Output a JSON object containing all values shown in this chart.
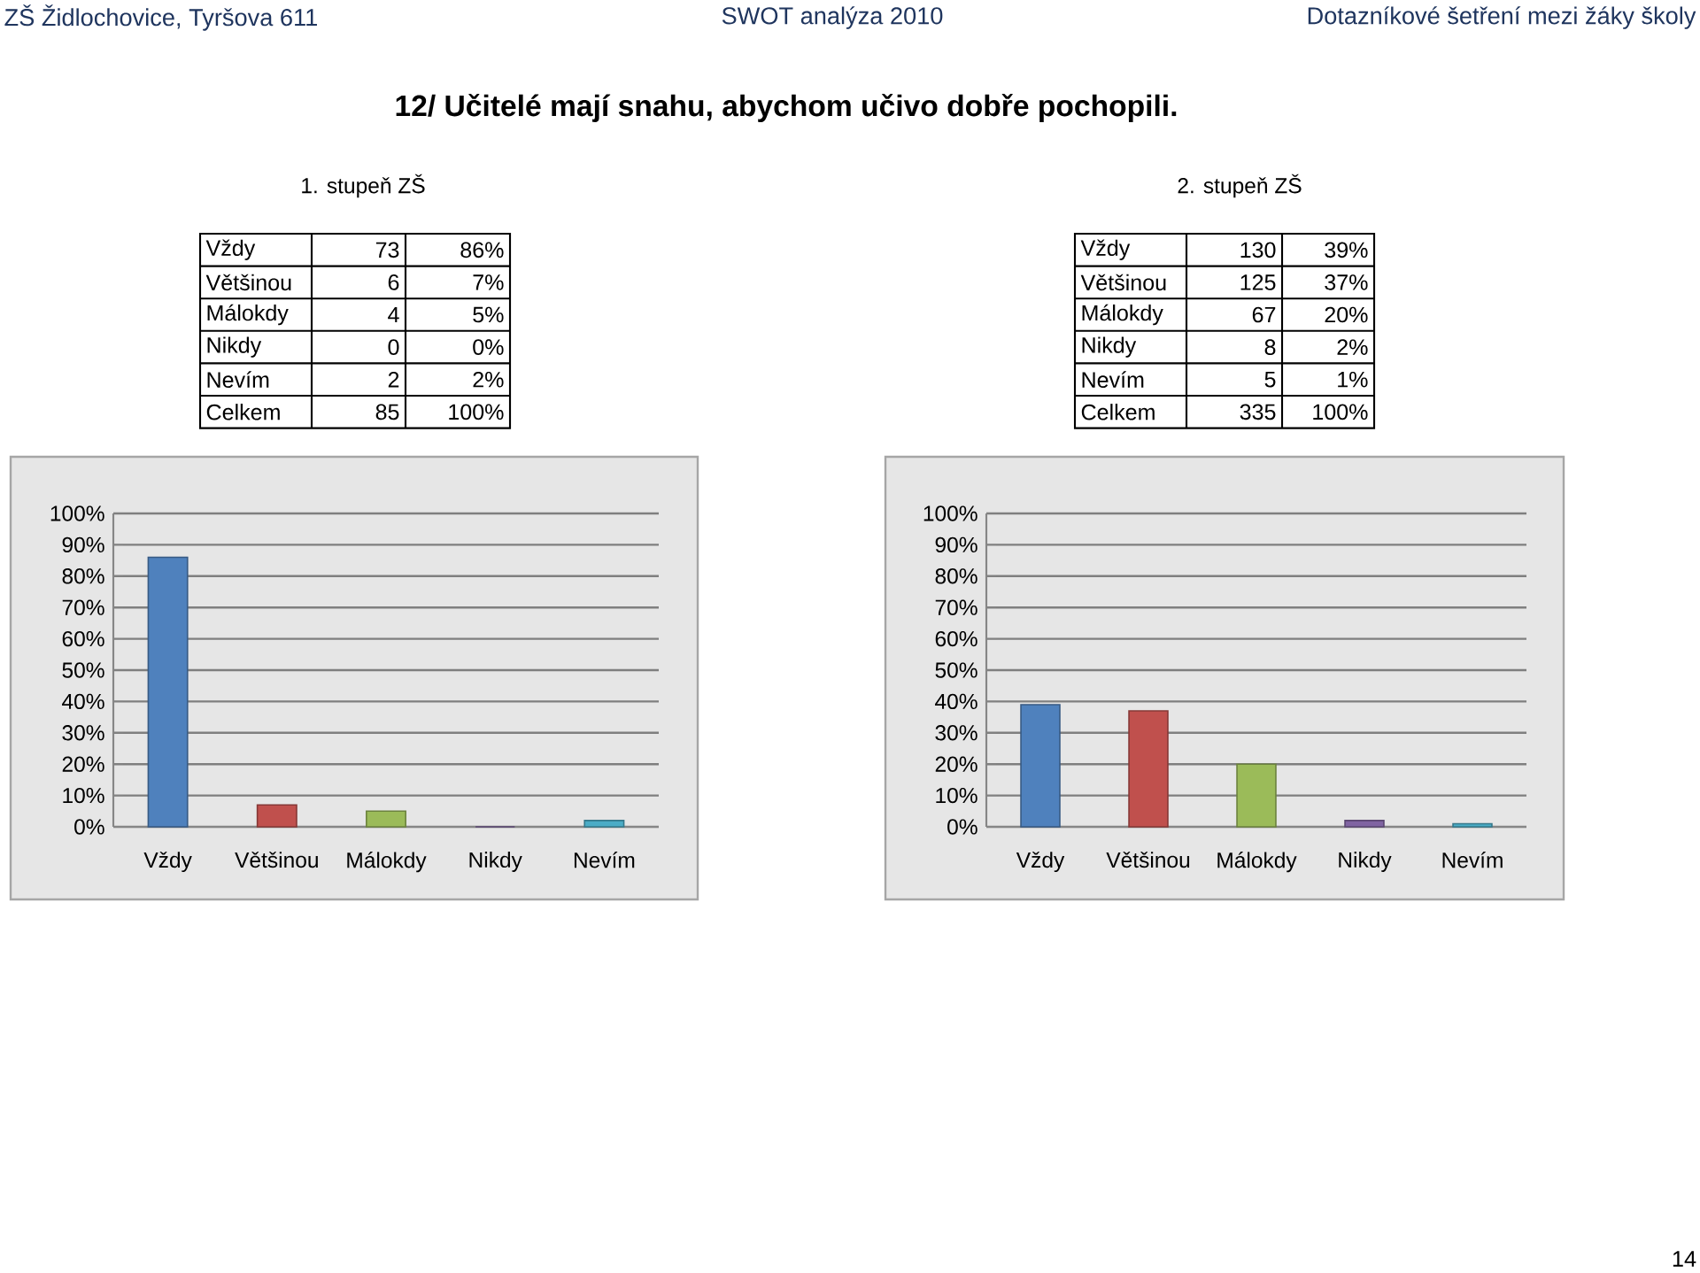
{
  "chart_data": [
    {
      "type": "other",
      "title": "1. stupeň ZŠ",
      "categories": [
        "Vždy",
        "Většinou",
        "Málokdy",
        "Nikdy",
        "Nevím",
        "Celkem"
      ],
      "data_labels": true,
      "series": [
        {
          "values": [
            73,
            6,
            4,
            0,
            2,
            85
          ]
        },
        {
          "values": [
            86,
            7,
            5,
            0,
            2,
            100
          ],
          "value_labels": [
            "86%",
            "7%",
            "5%",
            "0%",
            "2%",
            "100%"
          ]
        }
      ],
      "annotations": [
        "ZŠ Židlochovice, Tyršova 611",
        "SWOT analýza 2010",
        "Dotazníkové šetření mezi žáky školy",
        "12/ Učitelé mají snahu, abychom učivo dobře pochopili.",
        "14"
      ]
    },
    {
      "type": "other",
      "title": "2. stupeň ZŠ",
      "categories": [
        "Vždy",
        "Většinou",
        "Málokdy",
        "Nikdy",
        "Nevím",
        "Celkem"
      ],
      "data_labels": true,
      "series": [
        {
          "values": [
            130,
            125,
            67,
            8,
            5,
            335
          ]
        },
        {
          "values": [
            39,
            37,
            20,
            2,
            1,
            100
          ],
          "value_labels": [
            "39%",
            "37%",
            "20%",
            "2%",
            "1%",
            "100%"
          ]
        }
      ]
    },
    {
      "type": "bar",
      "categories": [
        "Vždy",
        "Většinou",
        "Málokdy",
        "Nikdy",
        "Nevím"
      ],
      "values": [
        86,
        7,
        5,
        0,
        2
      ],
      "colors": [
        "#4f81bd",
        "#c0504d",
        "#9bbb59",
        "#8064a2",
        "#4bacc6"
      ],
      "ylim": [
        0,
        100
      ],
      "yticks": [
        {
          "value": 0,
          "label": "0%"
        },
        {
          "value": 10,
          "label": "10%"
        },
        {
          "value": 20,
          "label": "20%"
        },
        {
          "value": 30,
          "label": "30%"
        },
        {
          "value": 40,
          "label": "40%"
        },
        {
          "value": 50,
          "label": "50%"
        },
        {
          "value": 60,
          "label": "60%"
        },
        {
          "value": 70,
          "label": "70%"
        },
        {
          "value": 80,
          "label": "80%"
        },
        {
          "value": 90,
          "label": "90%"
        },
        {
          "value": 100,
          "label": "100%"
        }
      ],
      "grid": "y"
    },
    {
      "type": "bar",
      "categories": [
        "Vždy",
        "Většinou",
        "Málokdy",
        "Nikdy",
        "Nevím"
      ],
      "values": [
        39,
        37,
        20,
        2,
        1
      ],
      "colors": [
        "#4f81bd",
        "#c0504d",
        "#9bbb59",
        "#8064a2",
        "#4bacc6"
      ],
      "ylim": [
        0,
        100
      ],
      "yticks": [
        {
          "value": 0,
          "label": "0%"
        },
        {
          "value": 10,
          "label": "10%"
        },
        {
          "value": 20,
          "label": "20%"
        },
        {
          "value": 30,
          "label": "30%"
        },
        {
          "value": 40,
          "label": "40%"
        },
        {
          "value": 50,
          "label": "50%"
        },
        {
          "value": 60,
          "label": "60%"
        },
        {
          "value": 70,
          "label": "70%"
        },
        {
          "value": 80,
          "label": "80%"
        },
        {
          "value": 90,
          "label": "90%"
        },
        {
          "value": 100,
          "label": "100%"
        }
      ],
      "grid": "y"
    }
  ]
}
